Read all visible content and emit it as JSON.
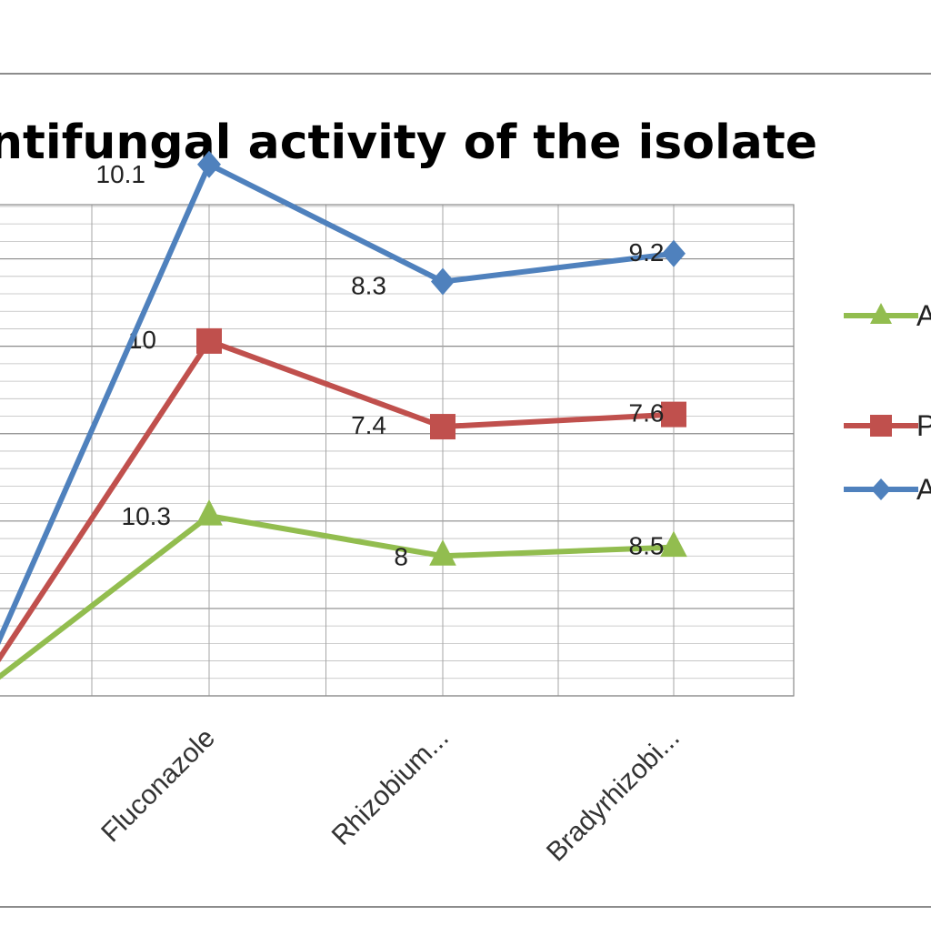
{
  "chart_data": {
    "type": "line",
    "title": "ntifungal  activity of the isolate",
    "categories": [
      "",
      "Fluconazole",
      "Rhizobium...",
      "Bradyrhizobi..."
    ],
    "series": [
      {
        "name": "A",
        "color": "#92BD4F",
        "marker": "triangle-icon",
        "values": [
          0,
          10.3,
          8,
          8.5
        ],
        "data_labels": [
          "",
          "10.3",
          "8",
          "8.5"
        ]
      },
      {
        "name": "P",
        "color": "#C0504D",
        "marker": "square-icon",
        "values": [
          0,
          10,
          7.4,
          7.6
        ],
        "data_labels": [
          "",
          "10",
          "7.4",
          "7.6"
        ]
      },
      {
        "name": "A",
        "color": "#4F81BD",
        "marker": "diamond-icon",
        "values": [
          0,
          10.1,
          8.3,
          9.2
        ],
        "data_labels": [
          "",
          "10.1",
          "8.3",
          "9.2"
        ]
      }
    ],
    "stacked": true,
    "grid": true,
    "legend_position": "right",
    "xlabel": "",
    "ylabel": ""
  }
}
